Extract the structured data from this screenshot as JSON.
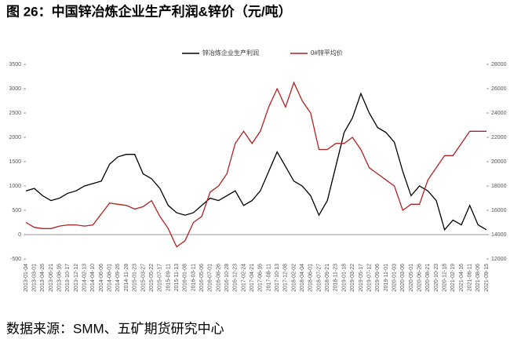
{
  "chart_data": {
    "type": "line",
    "title": "图 26：中国锌冶炼企业生产利润&锌价（元/吨）",
    "source": "数据来源：SMM、五矿期货研究中心",
    "categories": [
      "2013-01-04",
      "2013-03-01",
      "2013-04-26",
      "2013-06-21",
      "2013-08-16",
      "2013-10-17",
      "2013-12-12",
      "2014-02-13",
      "2014-04-10",
      "2014-06-06",
      "2014-08-01",
      "2014-09-26",
      "2014-11-28",
      "2015-01-23",
      "2015-03-27",
      "2015-05-22",
      "2015-07-17",
      "2015-09-11",
      "2015-11-13",
      "2016-01-08",
      "2016-03-11",
      "2016-05-06",
      "2016-07-01",
      "2016-08-26",
      "2016-10-28",
      "2016-12-23",
      "2017-02-24",
      "2017-04-21",
      "2017-06-16",
      "2017-08-11",
      "2017-10-13",
      "2017-12-08",
      "2018-02-02",
      "2018-04-04",
      "2018-06-01",
      "2018-07-27",
      "2018-09-21",
      "2018-11-23",
      "2019-01-18",
      "2019-03-22",
      "2019-05-17",
      "2019-07-12",
      "2019-09-06",
      "2019-11-01",
      "2020-01-03",
      "2020-03-06",
      "2020-05-01",
      "2020-06-26",
      "2020-08-21",
      "2020-10-23",
      "2020-12-18",
      "2021-02-19",
      "2021-04-16",
      "2021-06-11",
      "2021-08-06",
      "2021-09-15"
    ],
    "series": [
      {
        "name": "锌冶炼企业生产利润",
        "color": "#000000",
        "values": [
          900,
          950,
          800,
          700,
          750,
          850,
          900,
          1000,
          1050,
          1100,
          1450,
          1600,
          1650,
          1650,
          1250,
          1150,
          950,
          600,
          450,
          400,
          450,
          600,
          750,
          700,
          800,
          900,
          600,
          700,
          900,
          1300,
          1700,
          1400,
          1100,
          1000,
          800,
          400,
          700,
          1400,
          2100,
          2400,
          2900,
          2500,
          2200,
          2100,
          1900,
          1300,
          800,
          1000,
          900,
          700,
          100,
          300,
          200,
          600,
          200,
          100
        ]
      },
      {
        "name": "0#锌平均价",
        "color": "#b22222",
        "axis": "y2",
        "values": [
          15000,
          14600,
          14500,
          14500,
          14700,
          14800,
          14800,
          14700,
          14800,
          15700,
          16600,
          16500,
          16400,
          16100,
          16300,
          16800,
          15500,
          14500,
          13000,
          13500,
          15000,
          15500,
          17500,
          18000,
          19000,
          21500,
          22500,
          21500,
          22500,
          24500,
          26000,
          24500,
          26500,
          25000,
          24000,
          21000,
          21000,
          21500,
          21500,
          22000,
          21000,
          19500,
          19000,
          18500,
          18000,
          16000,
          16500,
          16500,
          18500,
          19500,
          20500,
          20500,
          21500,
          22500,
          22500,
          22500
        ]
      }
    ],
    "ylim": [
      -500,
      3500
    ],
    "yticks": [
      -500,
      0,
      500,
      1000,
      1500,
      2000,
      2500,
      3000,
      3500
    ],
    "y2lim": [
      12000,
      28000
    ],
    "y2ticks": [
      12000,
      14000,
      16000,
      18000,
      20000,
      22000,
      24000,
      26000,
      28000
    ],
    "legend": "top"
  }
}
